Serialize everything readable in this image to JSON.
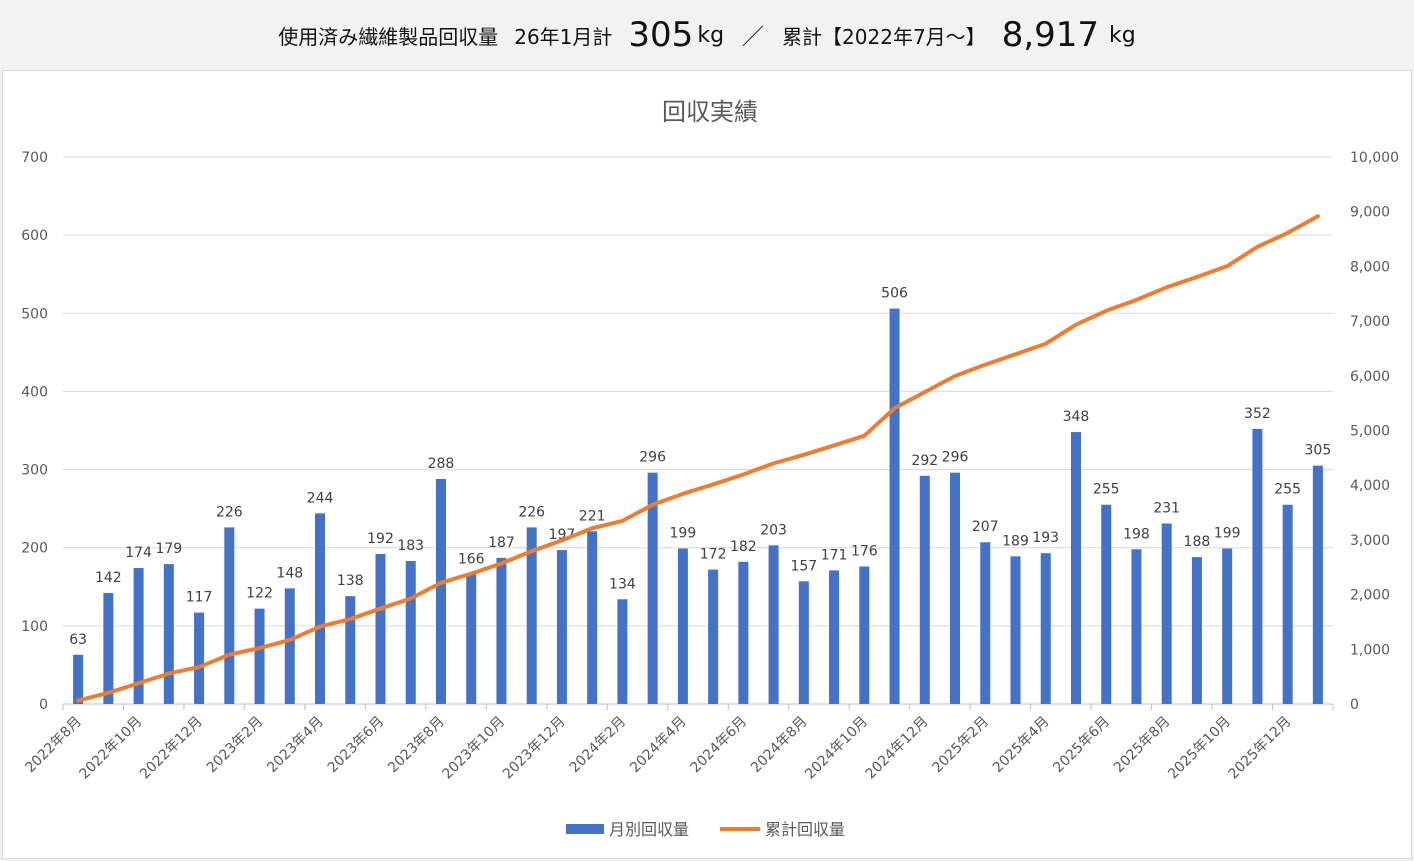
{
  "header": {
    "label": "使用済み繊維製品回収量",
    "month_label": "26年1月計",
    "month_value": "305",
    "month_unit": "kg",
    "separator": "／",
    "total_label": "累計【2022年7月～】",
    "total_value": "8,917",
    "total_unit": "kg"
  },
  "chart_data": {
    "type": "bar+line",
    "title": "回収実績",
    "categories": [
      "2022年8月",
      "2022年9月",
      "2022年10月",
      "2022年11月",
      "2022年12月",
      "2023年1月",
      "2023年2月",
      "2023年3月",
      "2023年4月",
      "2023年5月",
      "2023年6月",
      "2023年7月",
      "2023年8月",
      "2023年9月",
      "2023年10月",
      "2023年11月",
      "2023年12月",
      "2024年1月",
      "2024年2月",
      "2024年3月",
      "2024年4月",
      "2024年5月",
      "2024年6月",
      "2024年7月",
      "2024年8月",
      "2024年9月",
      "2024年10月",
      "2024年11月",
      "2024年12月",
      "2025年1月",
      "2025年2月",
      "2025年3月",
      "2025年4月",
      "2025年5月",
      "2025年6月",
      "2025年7月",
      "2025年8月",
      "2025年9月",
      "2025年10月",
      "2025年11月",
      "2025年12月",
      "2026年1月"
    ],
    "tick_labels": [
      "2022年8月",
      "2022年10月",
      "2022年12月",
      "2023年2月",
      "2023年4月",
      "2023年6月",
      "2023年8月",
      "2023年10月",
      "2023年12月",
      "2024年2月",
      "2024年4月",
      "2024年6月",
      "2024年8月",
      "2024年10月",
      "2024年12月",
      "2025年2月",
      "2025年4月",
      "2025年6月",
      "2025年8月",
      "2025年10月",
      "2025年12月"
    ],
    "series": [
      {
        "name": "月別回収量",
        "type": "bar",
        "axis": "left",
        "color": "#4472c4",
        "values": [
          63,
          142,
          174,
          179,
          117,
          226,
          122,
          148,
          244,
          138,
          192,
          183,
          288,
          166,
          187,
          226,
          197,
          221,
          134,
          296,
          199,
          172,
          182,
          203,
          157,
          171,
          176,
          506,
          292,
          296,
          207,
          189,
          193,
          348,
          255,
          198,
          231,
          188,
          199,
          352,
          255,
          305
        ]
      },
      {
        "name": "累計回収量",
        "type": "line",
        "axis": "right",
        "color": "#ed7d31",
        "values": [
          63,
          205,
          379,
          558,
          675,
          901,
          1023,
          1171,
          1415,
          1553,
          1745,
          1928,
          2216,
          2382,
          2569,
          2795,
          2992,
          3213,
          3347,
          3643,
          3842,
          4014,
          4196,
          4399,
          4556,
          4727,
          4903,
          5409,
          5701,
          5997,
          6204,
          6393,
          6586,
          6934,
          7189,
          7387,
          7618,
          7806,
          8005,
          8357,
          8612,
          8917
        ]
      }
    ],
    "y_left": {
      "range": [
        0,
        700
      ],
      "ticks": [
        "0",
        "100",
        "200",
        "300",
        "400",
        "500",
        "600",
        "700"
      ]
    },
    "y_right": {
      "range": [
        0,
        10000
      ],
      "ticks": [
        "0",
        "1,000",
        "2,000",
        "3,000",
        "4,000",
        "5,000",
        "6,000",
        "7,000",
        "8,000",
        "9,000",
        "10,000"
      ]
    },
    "grid": true,
    "legend": "bottom"
  }
}
